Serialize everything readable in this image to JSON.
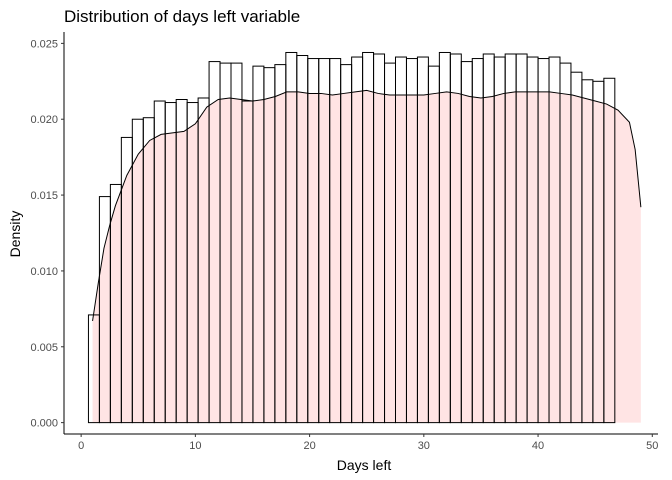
{
  "chart_data": {
    "type": "bar",
    "title": "Distribution of days left variable",
    "xlabel": "Days left",
    "ylabel": "Density",
    "xlim": [
      -1.5,
      50.5
    ],
    "ylim": [
      -0.00075,
      0.02575
    ],
    "x_ticks": [
      0,
      10,
      20,
      30,
      40,
      50
    ],
    "x_tick_labels": [
      "0",
      "10",
      "20",
      "30",
      "40",
      "50"
    ],
    "y_ticks": [
      0,
      0.005,
      0.01,
      0.015,
      0.02,
      0.025
    ],
    "y_tick_labels": [
      "0.000",
      "0.005",
      "0.010",
      "0.015",
      "0.020",
      "0.025"
    ],
    "grid": false,
    "legend": "none",
    "histogram": {
      "bin_width": 0.96,
      "start": 0.64,
      "densities": [
        0.0071,
        0.0149,
        0.0157,
        0.0188,
        0.02,
        0.0201,
        0.0212,
        0.0211,
        0.0213,
        0.0211,
        0.0214,
        0.0238,
        0.0237,
        0.0237,
        0.0212,
        0.0235,
        0.0234,
        0.0236,
        0.0244,
        0.0242,
        0.024,
        0.024,
        0.024,
        0.0236,
        0.0241,
        0.0244,
        0.0243,
        0.0237,
        0.0241,
        0.024,
        0.0241,
        0.0235,
        0.0244,
        0.0243,
        0.0238,
        0.024,
        0.0243,
        0.0241,
        0.0243,
        0.0243,
        0.0241,
        0.024,
        0.0241,
        0.0237,
        0.0231,
        0.0226,
        0.0225,
        0.0227
      ],
      "fill": "#ffffff",
      "stroke": "#000000"
    },
    "density_curve": {
      "fill": "#ffe4e4",
      "stroke": "#000000",
      "x": [
        1,
        1.5,
        2,
        2.5,
        3,
        4,
        5,
        6,
        7,
        8,
        9,
        10,
        11,
        12,
        13,
        14,
        15,
        16,
        17,
        18,
        19,
        20,
        21,
        22,
        23,
        24,
        25,
        26,
        27,
        28,
        29,
        30,
        31,
        32,
        33,
        34,
        35,
        36,
        37,
        38,
        39,
        40,
        41,
        42,
        43,
        44,
        45,
        46,
        47,
        48,
        48.5,
        49
      ],
      "y": [
        0.0067,
        0.0092,
        0.0115,
        0.013,
        0.0143,
        0.0163,
        0.0177,
        0.0186,
        0.019,
        0.0191,
        0.0192,
        0.0197,
        0.0208,
        0.0213,
        0.0214,
        0.0213,
        0.0212,
        0.0213,
        0.0215,
        0.0218,
        0.0218,
        0.0217,
        0.0217,
        0.0216,
        0.0217,
        0.0218,
        0.0219,
        0.0217,
        0.0216,
        0.0216,
        0.0216,
        0.0216,
        0.0217,
        0.0218,
        0.0217,
        0.0215,
        0.0214,
        0.0215,
        0.0217,
        0.0218,
        0.0218,
        0.0218,
        0.0218,
        0.0217,
        0.0216,
        0.0214,
        0.0212,
        0.021,
        0.0206,
        0.0198,
        0.018,
        0.0142
      ]
    }
  }
}
